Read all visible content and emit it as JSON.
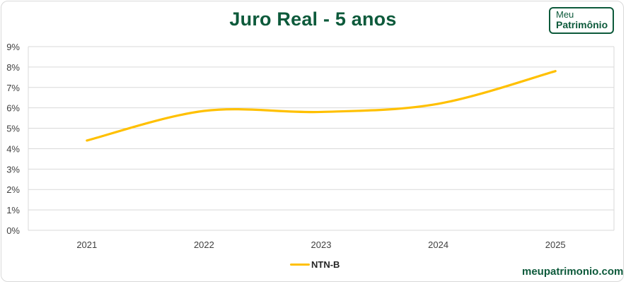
{
  "header": {
    "title": "Juro Real - 5 anos",
    "logo_line1": "Meu",
    "logo_line2": "Patrimônio"
  },
  "footer": {
    "site": "meupatrimonio.com"
  },
  "legend": {
    "items": [
      {
        "label": "NTN-B",
        "color": "#ffc000"
      }
    ]
  },
  "colors": {
    "brand": "#0d5a3b",
    "series": "#ffc000",
    "grid": "#d9d9d9"
  },
  "chart_data": {
    "type": "line",
    "title": "Juro Real - 5 anos",
    "xlabel": "",
    "ylabel": "",
    "categories": [
      "2021",
      "2022",
      "2023",
      "2024",
      "2025"
    ],
    "series": [
      {
        "name": "NTN-B",
        "values": [
          4.4,
          5.85,
          5.8,
          6.2,
          7.8
        ],
        "color": "#ffc000",
        "smooth": true
      }
    ],
    "ylim": [
      0,
      9
    ],
    "yticks": [
      "0%",
      "1%",
      "2%",
      "3%",
      "4%",
      "5%",
      "6%",
      "7%",
      "8%",
      "9%"
    ],
    "grid": true,
    "legend_position": "bottom"
  }
}
